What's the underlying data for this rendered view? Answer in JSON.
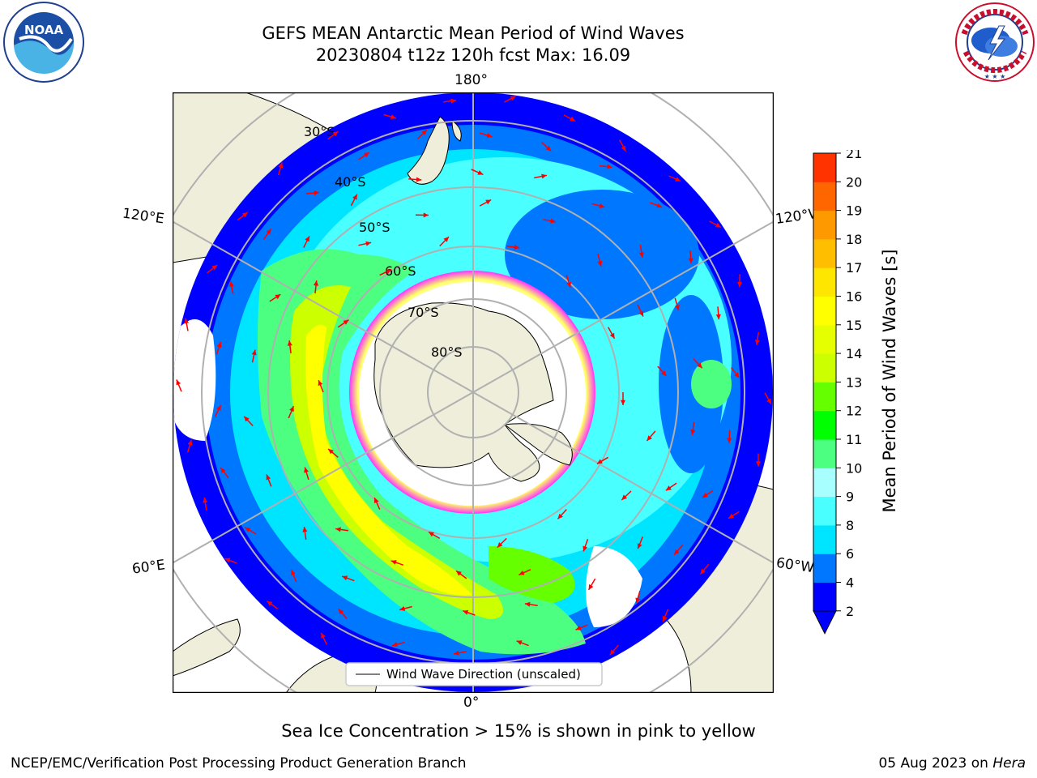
{
  "header": {
    "title_line1": "GEFS MEAN Antarctic Mean Period of Wind Waves",
    "title_line2": "20230804 t12z 120h fcst   Max: 16.09"
  },
  "logos": {
    "left": {
      "name": "noaa-logo",
      "text": "NOAA",
      "ring_text": "NATIONAL OCEANIC AND ATMOSPHERIC ADMINISTRATION · U.S. DEPARTMENT OF COMMERCE"
    },
    "right": {
      "name": "nws-logo",
      "ring_text": "NATIONAL WEATHER SERVICE"
    }
  },
  "map": {
    "projection": "south polar stereographic",
    "longitude_labels": {
      "top": "180°",
      "bottom": "0°",
      "upper_left": "120°E",
      "upper_right": "120°W",
      "lower_left": "60°E",
      "lower_right": "60°W"
    },
    "latitude_labels": [
      "30°S",
      "40°S",
      "50°S",
      "60°S",
      "70°S",
      "80°S"
    ],
    "legend": {
      "label": "Wind Wave Direction (unscaled)"
    },
    "colors": {
      "land": "#efeedb",
      "ice_high": "#ff33ff",
      "ice_low": "#ffff66",
      "arrow": "#ff0000",
      "grid": "#b0b0b0"
    }
  },
  "colorbar": {
    "label": "Mean Period of Wind Waves [s]",
    "ticks": [
      "2",
      "4",
      "6",
      "8",
      "9",
      "10",
      "11",
      "12",
      "13",
      "14",
      "15",
      "16",
      "17",
      "18",
      "19",
      "20",
      "21"
    ],
    "colors": [
      "#0000ff",
      "#0077ff",
      "#00e5ff",
      "#49ffff",
      "#a8ffff",
      "#4dff80",
      "#00ff00",
      "#66ff00",
      "#ccff00",
      "#e5ff00",
      "#ffff00",
      "#ffe600",
      "#ffbf00",
      "#ff9900",
      "#ff6600",
      "#ff3300",
      "#ff0000"
    ],
    "extend": "min"
  },
  "note": "Sea Ice Concentration > 15% is shown in pink to yellow",
  "footer": {
    "left": "NCEP/EMC/Verification Post Processing Product Generation Branch",
    "right_date": "05 Aug 2023 on ",
    "right_machine": "Hera"
  }
}
